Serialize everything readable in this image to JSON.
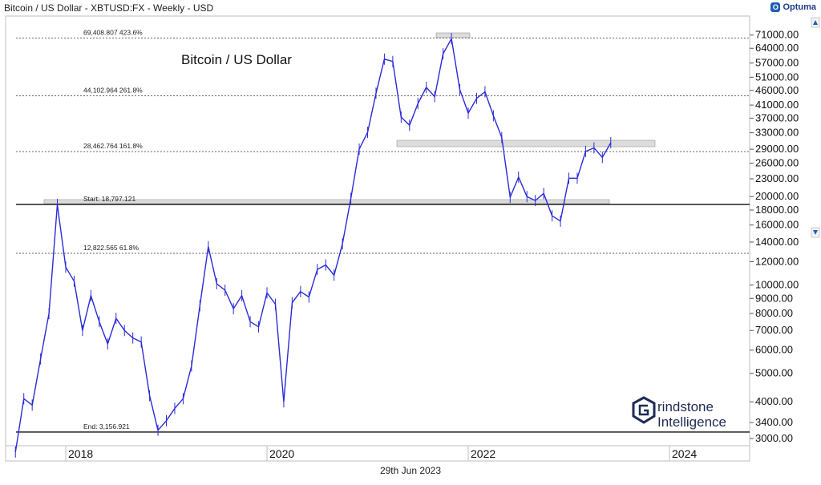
{
  "header": {
    "title": "Bitcoin / US Dollar - XBTUSD:FX - Weekly - USD",
    "brand": "Optuma"
  },
  "footer": {
    "date": "29th Jun 2023"
  },
  "watermark": {
    "line1": "rindstone",
    "line2": "Intelligence"
  },
  "chart_data": {
    "type": "line",
    "title": "Bitcoin / US Dollar",
    "scale": "log",
    "ylim": [
      3000,
      75000
    ],
    "y_ticks": [
      "71000.00",
      "64000.00",
      "57000.00",
      "51000.00",
      "46000.00",
      "41000.00",
      "37000.00",
      "33000.00",
      "29000.00",
      "26000.00",
      "23000.00",
      "20000.00",
      "18000.00",
      "16000.00",
      "14000.00",
      "12000.00",
      "10000.00",
      "9000.00",
      "8000.00",
      "7000.00",
      "6000.00",
      "5000.00",
      "4000.00",
      "3400.00",
      "3000.00"
    ],
    "x_ticks": [
      "2018",
      "2020",
      "2022",
      "2024"
    ],
    "fib_levels": [
      {
        "label": "69,408.807",
        "pct": "423.6%",
        "value": 69408.807
      },
      {
        "label": "44,102.964",
        "pct": "261.8%",
        "value": 44102.964
      },
      {
        "label": "28,462.764",
        "pct": "161.8%",
        "value": 28462.764
      },
      {
        "label": "18,797.121",
        "pct": "Start:",
        "value": 18797.121
      },
      {
        "label": "12,822.565",
        "pct": "61.8%",
        "value": 12822.565
      },
      {
        "label": "3,156.921",
        "pct": "End:",
        "value": 3156.921
      }
    ],
    "series": [
      {
        "color": "#2b2bd9",
        "points": [
          [
            "2017-07",
            2700
          ],
          [
            "2017-08",
            4100
          ],
          [
            "2017-09",
            3900
          ],
          [
            "2017-10",
            5600
          ],
          [
            "2017-11",
            8000
          ],
          [
            "2017-12",
            18797
          ],
          [
            "2018-01",
            11500
          ],
          [
            "2018-02",
            10300
          ],
          [
            "2018-03",
            7000
          ],
          [
            "2018-04",
            9200
          ],
          [
            "2018-05",
            7500
          ],
          [
            "2018-06",
            6300
          ],
          [
            "2018-07",
            7700
          ],
          [
            "2018-08",
            7000
          ],
          [
            "2018-09",
            6600
          ],
          [
            "2018-10",
            6400
          ],
          [
            "2018-11",
            4200
          ],
          [
            "2018-12",
            3200
          ],
          [
            "2019-01",
            3450
          ],
          [
            "2019-02",
            3800
          ],
          [
            "2019-03",
            4100
          ],
          [
            "2019-04",
            5300
          ],
          [
            "2019-05",
            8500
          ],
          [
            "2019-06",
            13500
          ],
          [
            "2019-07",
            10100
          ],
          [
            "2019-08",
            9600
          ],
          [
            "2019-09",
            8300
          ],
          [
            "2019-10",
            9200
          ],
          [
            "2019-11",
            7500
          ],
          [
            "2019-12",
            7200
          ],
          [
            "2020-01",
            9400
          ],
          [
            "2020-02",
            8600
          ],
          [
            "2020-03",
            4000
          ],
          [
            "2020-04",
            8700
          ],
          [
            "2020-05",
            9500
          ],
          [
            "2020-06",
            9100
          ],
          [
            "2020-07",
            11300
          ],
          [
            "2020-08",
            11700
          ],
          [
            "2020-09",
            10800
          ],
          [
            "2020-10",
            13800
          ],
          [
            "2020-11",
            19700
          ],
          [
            "2020-12",
            29000
          ],
          [
            "2021-01",
            33100
          ],
          [
            "2021-02",
            45000
          ],
          [
            "2021-03",
            58800
          ],
          [
            "2021-04",
            57700
          ],
          [
            "2021-05",
            37300
          ],
          [
            "2021-06",
            35000
          ],
          [
            "2021-07",
            41500
          ],
          [
            "2021-08",
            47100
          ],
          [
            "2021-09",
            43800
          ],
          [
            "2021-10",
            61300
          ],
          [
            "2021-11",
            69000
          ],
          [
            "2021-12",
            46300
          ],
          [
            "2022-01",
            38500
          ],
          [
            "2022-02",
            43200
          ],
          [
            "2022-03",
            45500
          ],
          [
            "2022-04",
            37700
          ],
          [
            "2022-05",
            31800
          ],
          [
            "2022-06",
            19900
          ],
          [
            "2022-07",
            23300
          ],
          [
            "2022-08",
            20000
          ],
          [
            "2022-09",
            19400
          ],
          [
            "2022-10",
            20500
          ],
          [
            "2022-11",
            17200
          ],
          [
            "2022-12",
            16500
          ],
          [
            "2023-01",
            23100
          ],
          [
            "2023-02",
            23100
          ],
          [
            "2023-03",
            28500
          ],
          [
            "2023-04",
            29300
          ],
          [
            "2023-05",
            27200
          ],
          [
            "2023-06",
            30500
          ]
        ]
      }
    ]
  }
}
